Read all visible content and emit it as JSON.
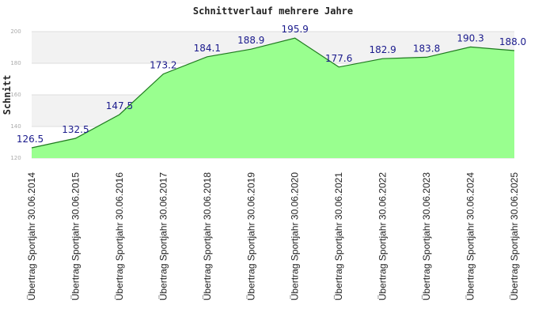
{
  "chart_data": {
    "type": "area",
    "title": "Schnittverlauf mehrere Jahre",
    "ylabel": "Schnitt",
    "xlabel": "",
    "ylim": [
      120,
      200
    ],
    "yticks": [
      "120",
      "140",
      "160",
      "180",
      "200"
    ],
    "grid": true,
    "legend": "none",
    "colors": {
      "fill": "#99ff8f",
      "line": "#1e7a1e",
      "band": "#f2f2f2",
      "label": "#1a1a8c"
    },
    "categories": [
      "Übertrag Sportjahr 30.06.2014",
      "Übertrag Sportjahr 30.06.2015",
      "Übertrag Sportjahr 30.06.2016",
      "Übertrag Sportjahr 30.06.2017",
      "Übertrag Sportjahr 30.06.2018",
      "Übertrag Sportjahr 30.06.2019",
      "Übertrag Sportjahr 30.06.2020",
      "Übertrag Sportjahr 30.06.2021",
      "Übertrag Sportjahr 30.06.2022",
      "Übertrag Sportjahr 30.06.2023",
      "Übertrag Sportjahr 30.06.2024",
      "Übertrag Sportjahr 30.06.2025"
    ],
    "values": [
      126.5,
      132.5,
      147.5,
      173.2,
      184.1,
      188.9,
      195.9,
      177.6,
      182.9,
      183.8,
      190.3,
      188.0
    ],
    "data_labels": [
      "126.5",
      "132.5",
      "147.5",
      "173.2",
      "184.1",
      "188.9",
      "195.9",
      "177.6",
      "182.9",
      "183.8",
      "190.3",
      "188.0"
    ]
  }
}
